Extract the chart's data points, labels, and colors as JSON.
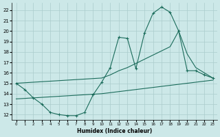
{
  "xlabel": "Humidex (Indice chaleur)",
  "bg_color": "#cce8e8",
  "grid_color": "#aacccc",
  "line_color": "#1a6b5a",
  "xlim": [
    -0.5,
    23.5
  ],
  "ylim": [
    11.5,
    22.7
  ],
  "xticks": [
    0,
    1,
    2,
    3,
    4,
    5,
    6,
    7,
    8,
    9,
    10,
    11,
    12,
    13,
    14,
    15,
    16,
    17,
    18,
    19,
    20,
    21,
    22,
    23
  ],
  "yticks": [
    12,
    13,
    14,
    15,
    16,
    17,
    18,
    19,
    20,
    21,
    22
  ],
  "line_main_x": [
    0,
    1,
    2,
    3,
    4,
    5,
    6,
    7,
    8,
    9,
    10,
    11,
    12,
    13,
    14,
    15,
    16,
    17,
    18,
    19,
    20,
    21,
    22,
    23
  ],
  "line_main_y": [
    15.0,
    14.4,
    13.6,
    13.0,
    12.2,
    12.0,
    11.9,
    11.9,
    12.2,
    13.9,
    15.1,
    16.5,
    19.4,
    19.3,
    16.4,
    19.8,
    21.7,
    22.3,
    21.8,
    20.0,
    16.2,
    16.2,
    15.8,
    15.5
  ],
  "line_upper_x": [
    0,
    10,
    11,
    12,
    13,
    14,
    15,
    16,
    17,
    18,
    19,
    20,
    21,
    22,
    23
  ],
  "line_upper_y": [
    15.0,
    15.5,
    15.8,
    16.2,
    16.5,
    16.9,
    17.3,
    17.7,
    18.1,
    18.5,
    20.0,
    17.8,
    16.5,
    16.0,
    15.5
  ],
  "line_lower_x": [
    0,
    1,
    2,
    3,
    4,
    5,
    6,
    7,
    8,
    9,
    10,
    11,
    12,
    13,
    14,
    15,
    16,
    17,
    18,
    19,
    20,
    21,
    22,
    23
  ],
  "line_lower_y": [
    13.5,
    13.55,
    13.6,
    13.65,
    13.7,
    13.75,
    13.8,
    13.85,
    13.9,
    13.95,
    14.0,
    14.1,
    14.2,
    14.3,
    14.4,
    14.5,
    14.6,
    14.7,
    14.8,
    14.9,
    15.0,
    15.1,
    15.2,
    15.3
  ]
}
